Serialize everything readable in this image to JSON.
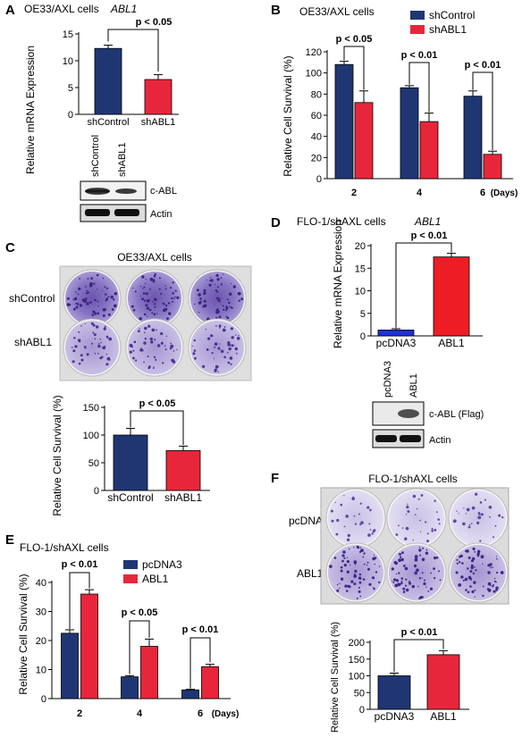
{
  "colors": {
    "navy": "#1f3673",
    "red": "#e8263b",
    "blue": "#2032d8",
    "red2": "#ee1c25",
    "purple": "#5a3e9a"
  },
  "panels": {
    "A": {
      "letter": "A",
      "title": "OE33/AXL cells",
      "gene": "ABL1",
      "ylabel": "Relative mRNA Expression",
      "yticks": [
        "0",
        "5",
        "10",
        "15"
      ],
      "pval": "p < 0.05",
      "blot_lanes": [
        "shControl",
        "shABL1"
      ],
      "blot_rows": [
        "c-ABL",
        "Actin"
      ]
    },
    "B": {
      "letter": "B",
      "title": "OE33/AXL cells",
      "ylabel": "Relative Cell Survival (%)",
      "yticks": [
        "0",
        "20",
        "40",
        "60",
        "80",
        "100",
        "120"
      ],
      "xticks": [
        "2",
        "4",
        "6"
      ],
      "xunit": "(Days)",
      "pvals": [
        "p < 0.05",
        "p < 0.01",
        "p < 0.01"
      ]
    },
    "C": {
      "letter": "C",
      "title": "OE33/AXL cells",
      "rows": [
        "shControl",
        "shABL1"
      ],
      "ylabel": "Relative Cell Survival (%)",
      "yticks": [
        "0",
        "50",
        "100",
        "150"
      ],
      "pval": "p < 0.05"
    },
    "D": {
      "letter": "D",
      "title": "FLO-1/shAXL cells",
      "gene": "ABL1",
      "ylabel": "Relative mRNA Expression",
      "yticks": [
        "0",
        "5",
        "10",
        "15",
        "20"
      ],
      "pval": "p < 0.01",
      "blot_lanes": [
        "pcDNA3",
        "ABL1"
      ],
      "blot_rows": [
        "c-ABL (Flag)",
        "Actin"
      ]
    },
    "E": {
      "letter": "E",
      "title": "FLO-1/shAXL cells",
      "ylabel": "Relative Cell Survival (%)",
      "yticks": [
        "0",
        "10",
        "20",
        "30",
        "40"
      ],
      "xticks": [
        "2",
        "4",
        "6"
      ],
      "xunit": "(Days)",
      "pvals": [
        "p < 0.01",
        "p < 0.05",
        "p < 0.01"
      ]
    },
    "F": {
      "letter": "F",
      "title": "FLO-1/shAXL cells",
      "rows": [
        "pcDNA3",
        "ABL1"
      ],
      "ylabel": "Relative Cell Survival (%)",
      "yticks": [
        "0",
        "50",
        "100",
        "150",
        "200"
      ],
      "pval": "p < 0.01"
    }
  },
  "chart_data": [
    {
      "id": "A",
      "type": "bar",
      "categories": [
        "shControl",
        "shABL1"
      ],
      "values": [
        12.3,
        6.5
      ],
      "errors": [
        0.6,
        0.9
      ],
      "ylim": [
        0,
        15
      ],
      "ylabel": "Relative mRNA Expression"
    },
    {
      "id": "B",
      "type": "bar",
      "categories": [
        "2",
        "4",
        "6"
      ],
      "series": [
        {
          "name": "shControl",
          "values": [
            108,
            86,
            78
          ],
          "errors": [
            3,
            2,
            5
          ]
        },
        {
          "name": "shABL1",
          "values": [
            72,
            54,
            23
          ],
          "errors": [
            11,
            8,
            3
          ]
        }
      ],
      "ylim": [
        0,
        120
      ],
      "ylabel": "Relative Cell Survival (%)"
    },
    {
      "id": "C",
      "type": "bar",
      "categories": [
        "shControl",
        "shABL1"
      ],
      "values": [
        100,
        72
      ],
      "errors": [
        12,
        8
      ],
      "ylim": [
        0,
        150
      ],
      "ylabel": "Relative Cell Survival (%)"
    },
    {
      "id": "D",
      "type": "bar",
      "categories": [
        "pcDNA3",
        "ABL1"
      ],
      "values": [
        1.3,
        17.5
      ],
      "errors": [
        0.3,
        0.8
      ],
      "ylim": [
        0,
        20
      ],
      "ylabel": "Relative mRNA Expression"
    },
    {
      "id": "E",
      "type": "bar",
      "categories": [
        "2",
        "4",
        "6"
      ],
      "series": [
        {
          "name": "pcDNA3",
          "values": [
            22.5,
            7.5,
            3.0
          ],
          "errors": [
            1.2,
            0.4,
            0.2
          ]
        },
        {
          "name": "ABL1",
          "values": [
            36,
            18,
            11
          ],
          "errors": [
            1.5,
            2.5,
            0.8
          ]
        }
      ],
      "ylim": [
        0,
        40
      ],
      "ylabel": "Relative Cell Survival (%)"
    },
    {
      "id": "F",
      "type": "bar",
      "categories": [
        "pcDNA3",
        "ABL1"
      ],
      "values": [
        100,
        163
      ],
      "errors": [
        8,
        12
      ],
      "ylim": [
        0,
        200
      ],
      "ylabel": "Relative Cell Survival (%)"
    }
  ]
}
